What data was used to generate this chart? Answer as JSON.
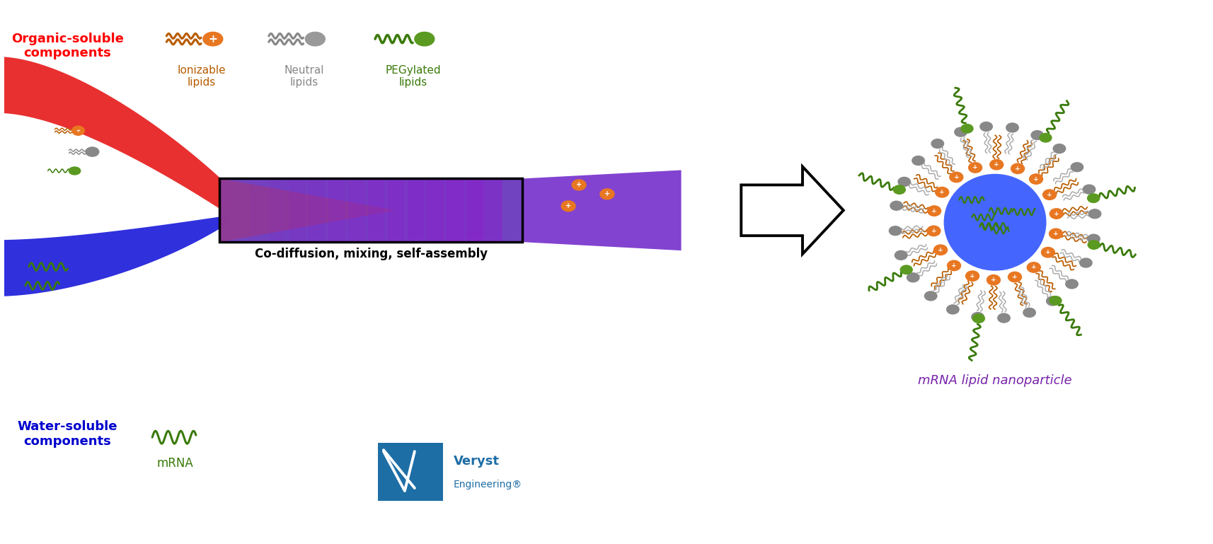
{
  "bg_color": "#ffffff",
  "red_label": "Organic-soluble\ncomponents",
  "red_color": "#ff0000",
  "blue_label": "Water-soluble\ncomponents",
  "blue_color": "#0000cd",
  "ionizable_color": "#b85c00",
  "ionizable_head_color": "#e87722",
  "ionizable_label": "Ionizable\nlipids",
  "neutral_color": "#888888",
  "neutral_head_color": "#999999",
  "neutral_label": "Neutral\nlipids",
  "pegylated_color": "#3a7a0a",
  "pegylated_head_color": "#5a9a20",
  "pegylated_label": "PEGylated\nlipids",
  "mixing_label": "Co-diffusion, mixing, self-assembly",
  "mrna_label": "mRNA",
  "mrna_color": "#3a7a0a",
  "nanoparticle_label": "mRNA lipid nanoparticle",
  "nanoparticle_label_color": "#7722aa",
  "veryst_blue": "#1e6ea6"
}
